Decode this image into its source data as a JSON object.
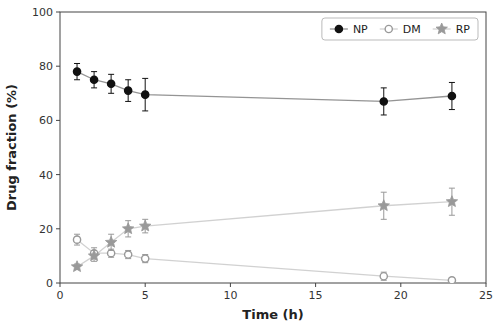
{
  "chart_data": {
    "type": "line",
    "xlabel": "Time (h)",
    "ylabel": "Drug fraction (%)",
    "x": [
      1,
      2,
      3,
      4,
      5,
      19,
      23
    ],
    "series": [
      {
        "name": "NP",
        "color": "#111111",
        "marker": "circle",
        "line_style": "solid",
        "values": [
          78,
          75,
          73.5,
          71,
          69.5,
          67,
          69
        ],
        "error": [
          3,
          3,
          3.5,
          4,
          6,
          5,
          5
        ]
      },
      {
        "name": "DM",
        "color": "#999999",
        "marker": "circle-open",
        "line_style": "solid",
        "values": [
          16,
          11,
          11,
          10.5,
          9,
          2.5,
          1
        ],
        "error": [
          2,
          2,
          1.5,
          1.5,
          1.5,
          1.5,
          1
        ]
      },
      {
        "name": "RP",
        "color": "#999999",
        "marker": "star",
        "line_style": "solid",
        "values": [
          6,
          10,
          15,
          20,
          21,
          28.5,
          30
        ],
        "error": [
          1,
          2,
          3,
          3,
          2.5,
          5,
          5
        ]
      }
    ],
    "xlim": [
      0,
      25
    ],
    "ylim": [
      0,
      100
    ],
    "xticks": [
      0,
      5,
      10,
      15,
      20,
      25
    ],
    "yticks": [
      0,
      20,
      40,
      60,
      80,
      100
    ],
    "grid": false,
    "legend": "upper right"
  }
}
